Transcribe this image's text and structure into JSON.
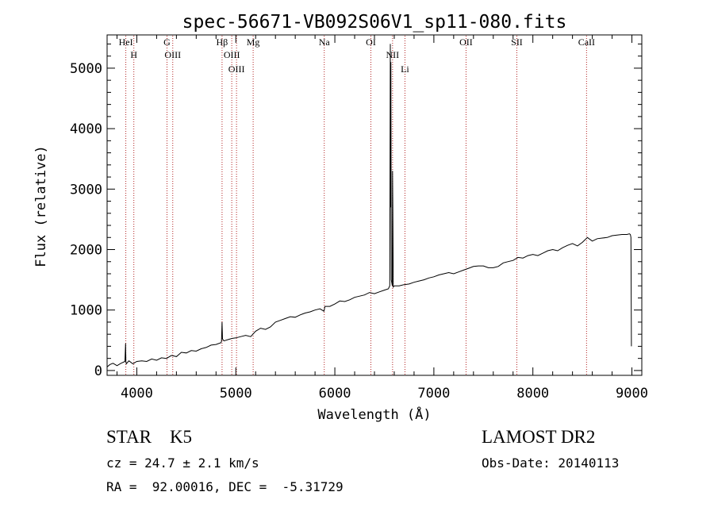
{
  "chart_data": {
    "type": "line",
    "title": "spec-56671-VB092S06V1_sp11-080.fits",
    "xlabel": "Wavelength (Å)",
    "ylabel": "Flux (relative)",
    "xlim": [
      3700,
      9100
    ],
    "ylim": [
      -80,
      5550
    ],
    "xticks": [
      4000,
      5000,
      6000,
      7000,
      8000,
      9000
    ],
    "yticks": [
      0,
      1000,
      2000,
      3000,
      4000,
      5000
    ],
    "grid": false,
    "line_color": "#000000",
    "marker_color": "#b22222",
    "lines": [
      {
        "label": "HeI",
        "wavelength": 3889
      },
      {
        "label": "H",
        "wavelength": 3970
      },
      {
        "label": "OIII",
        "wavelength": 4363
      },
      {
        "label": "G",
        "wavelength": 4305
      },
      {
        "label": "Hβ",
        "wavelength": 4861
      },
      {
        "label": "OIII",
        "wavelength": 4959
      },
      {
        "label": "OIII",
        "wavelength": 5007
      },
      {
        "label": "Mg",
        "wavelength": 5175
      },
      {
        "label": "Na",
        "wavelength": 5893
      },
      {
        "label": "OI",
        "wavelength": 6364
      },
      {
        "label": "NII",
        "wavelength": 6583
      },
      {
        "label": "Li",
        "wavelength": 6708
      },
      {
        "label": "OII",
        "wavelength": 7325
      },
      {
        "label": "SII",
        "wavelength": 7838
      },
      {
        "label": "CaII",
        "wavelength": 8542
      }
    ],
    "series": [
      {
        "x": [
          3700,
          3730,
          3760,
          3800,
          3840,
          3880,
          3887,
          3890,
          3894,
          3920,
          3960,
          4000,
          4050,
          4100,
          4150,
          4200,
          4250,
          4300,
          4350,
          4400,
          4450,
          4500,
          4550,
          4600,
          4650,
          4700,
          4750,
          4800,
          4850,
          4855,
          4861,
          4866,
          4880,
          4920,
          4960,
          5000,
          5050,
          5100,
          5150,
          5200,
          5250,
          5300,
          5350,
          5400,
          5450,
          5500,
          5550,
          5600,
          5650,
          5700,
          5750,
          5800,
          5850,
          5890,
          5900,
          5950,
          6000,
          6050,
          6100,
          6150,
          6200,
          6250,
          6300,
          6350,
          6400,
          6450,
          6500,
          6540,
          6555,
          6560,
          6563,
          6566,
          6570,
          6580,
          6583,
          6586,
          6590,
          6600,
          6650,
          6700,
          6750,
          6800,
          6850,
          6900,
          6950,
          7000,
          7050,
          7100,
          7150,
          7200,
          7250,
          7300,
          7350,
          7400,
          7450,
          7500,
          7550,
          7600,
          7650,
          7700,
          7750,
          7800,
          7850,
          7900,
          7950,
          8000,
          8050,
          8100,
          8150,
          8200,
          8250,
          8300,
          8350,
          8400,
          8450,
          8500,
          8550,
          8600,
          8650,
          8700,
          8750,
          8800,
          8850,
          8900,
          8950,
          8975,
          8985,
          8990,
          8995
        ],
        "y": [
          60,
          100,
          120,
          80,
          120,
          150,
          450,
          150,
          110,
          160,
          110,
          150,
          160,
          150,
          190,
          170,
          210,
          200,
          250,
          230,
          300,
          290,
          330,
          320,
          360,
          380,
          420,
          430,
          460,
          480,
          800,
          520,
          490,
          510,
          530,
          540,
          560,
          580,
          560,
          650,
          700,
          680,
          720,
          800,
          830,
          860,
          890,
          880,
          920,
          950,
          970,
          1000,
          1020,
          980,
          1060,
          1060,
          1100,
          1150,
          1140,
          1170,
          1210,
          1230,
          1250,
          1290,
          1270,
          1300,
          1330,
          1350,
          1400,
          5400,
          2700,
          5100,
          1500,
          1400,
          3300,
          2650,
          1380,
          1400,
          1400,
          1420,
          1430,
          1460,
          1480,
          1500,
          1530,
          1550,
          1580,
          1600,
          1620,
          1600,
          1630,
          1660,
          1690,
          1720,
          1730,
          1730,
          1700,
          1700,
          1720,
          1780,
          1800,
          1820,
          1870,
          1860,
          1900,
          1920,
          1900,
          1940,
          1980,
          2000,
          1980,
          2030,
          2070,
          2100,
          2060,
          2120,
          2200,
          2140,
          2180,
          2190,
          2200,
          2230,
          2240,
          2250,
          2250,
          2260,
          2250,
          2200,
          400
        ]
      }
    ]
  },
  "info": {
    "classification": "STAR    K5",
    "survey": "LAMOST DR2",
    "velocity": "cz = 24.7 ± 2.1 km/s",
    "obs_date": "Obs-Date: 20140113",
    "coordinates": "RA =  92.00016, DEC =  -5.31729"
  }
}
